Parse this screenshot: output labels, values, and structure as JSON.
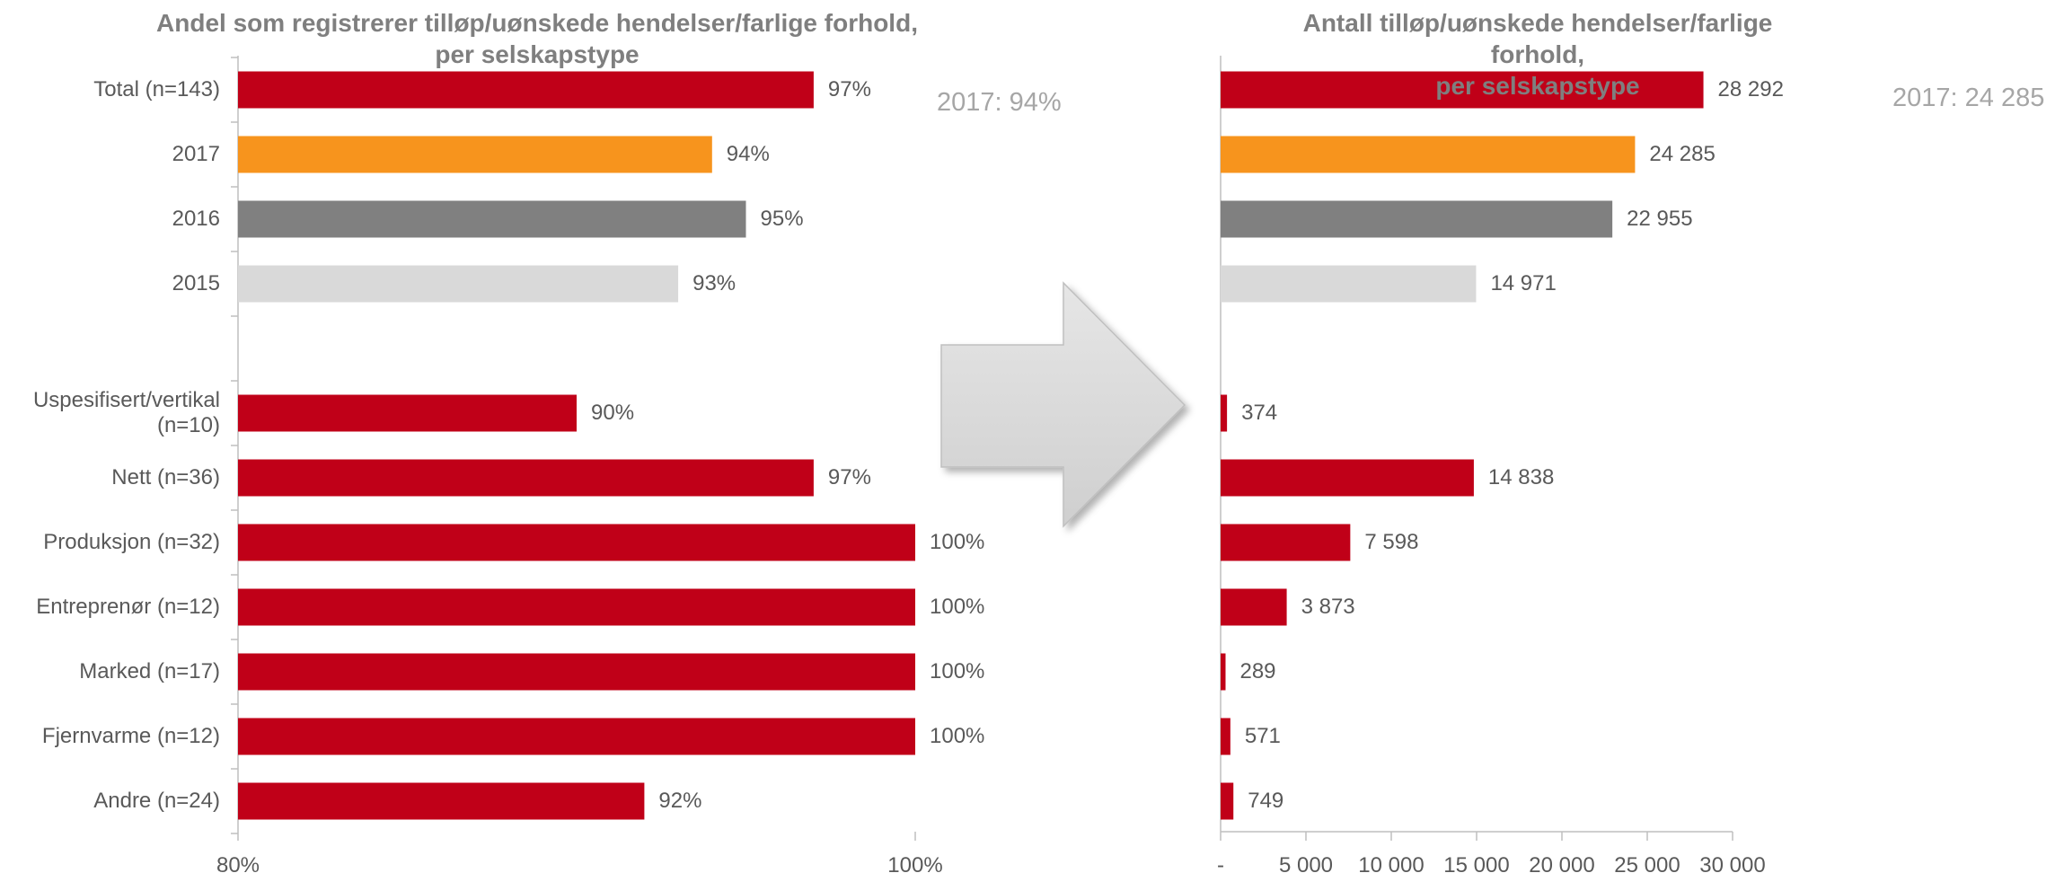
{
  "chart_data": [
    {
      "type": "bar",
      "orientation": "horizontal",
      "title": "Andel som registrerer tilløp/uønskede hendelser/farlige forhold,\nper selskapstype",
      "categories": [
        "Total (n=143)",
        "2017",
        "2016",
        "2015",
        null,
        "Uspesifisert/vertikal\n(n=10)",
        "Nett (n=36)",
        "Produksjon (n=32)",
        "Entreprenør (n=12)",
        "Marked (n=17)",
        "Fjernvarme (n=12)",
        "Andre (n=24)"
      ],
      "values": [
        97,
        94,
        95,
        93,
        null,
        90,
        97,
        100,
        100,
        100,
        100,
        92
      ],
      "value_labels": [
        "97%",
        "94%",
        "95%",
        "93%",
        null,
        "90%",
        "97%",
        "100%",
        "100%",
        "100%",
        "100%",
        "92%"
      ],
      "colors": [
        "#c00018",
        "#f7941d",
        "#808080",
        "#d9d9d9",
        null,
        "#c00018",
        "#c00018",
        "#c00018",
        "#c00018",
        "#c00018",
        "#c00018",
        "#c00018"
      ],
      "xlim": [
        80,
        100
      ],
      "xticks": [
        {
          "value": 80,
          "label": "80%"
        },
        {
          "value": 100,
          "label": "100%"
        }
      ],
      "annotation": "2017: 94%"
    },
    {
      "type": "bar",
      "orientation": "horizontal",
      "title": "Antall tilløp/uønskede hendelser/farlige forhold,\nper selskapstype",
      "categories": [
        null,
        null,
        null,
        null,
        null,
        null,
        null,
        null,
        null,
        null,
        null,
        null
      ],
      "values": [
        28292,
        24285,
        22955,
        14971,
        null,
        374,
        14838,
        7598,
        3873,
        289,
        571,
        749
      ],
      "value_labels": [
        "28 292",
        "24 285",
        "22 955",
        "14 971",
        null,
        "374",
        "14 838",
        "7 598",
        "3 873",
        "289",
        "571",
        "749"
      ],
      "colors": [
        "#c00018",
        "#f7941d",
        "#808080",
        "#d9d9d9",
        null,
        "#c00018",
        "#c00018",
        "#c00018",
        "#c00018",
        "#c00018",
        "#c00018",
        "#c00018"
      ],
      "xlim": [
        0,
        30000
      ],
      "xticks": [
        {
          "value": 0,
          "label": "-"
        },
        {
          "value": 5000,
          "label": "5 000"
        },
        {
          "value": 10000,
          "label": "10 000"
        },
        {
          "value": 15000,
          "label": "15 000"
        },
        {
          "value": 20000,
          "label": "20 000"
        },
        {
          "value": 25000,
          "label": "25 000"
        },
        {
          "value": 30000,
          "label": "30 000"
        }
      ],
      "annotation": "2017: 24 285"
    }
  ]
}
